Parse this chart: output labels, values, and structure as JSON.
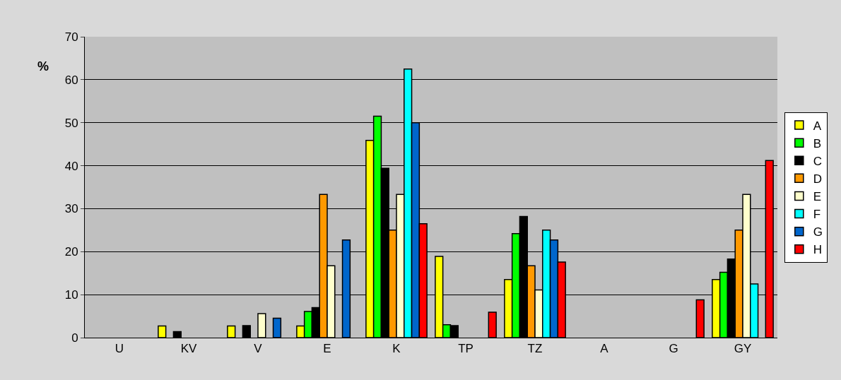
{
  "chart_data": {
    "type": "bar",
    "ylabel": "%",
    "categories": [
      "U",
      "KV",
      "V",
      "E",
      "K",
      "TP",
      "TZ",
      "A",
      "G",
      "GY"
    ],
    "series": [
      {
        "name": "A",
        "color": "#ffff00",
        "values": [
          null,
          2.7,
          2.7,
          2.7,
          45.9,
          18.9,
          13.5,
          null,
          null,
          13.5
        ]
      },
      {
        "name": "B",
        "color": "#00ff00",
        "values": [
          null,
          null,
          null,
          6.1,
          51.5,
          3.0,
          24.2,
          null,
          null,
          15.2
        ]
      },
      {
        "name": "C",
        "color": "#000000",
        "values": [
          null,
          1.4,
          2.8,
          7.0,
          39.4,
          2.8,
          28.2,
          null,
          null,
          18.3
        ]
      },
      {
        "name": "D",
        "color": "#ff9900",
        "values": [
          null,
          null,
          null,
          33.3,
          25.0,
          null,
          16.7,
          null,
          null,
          25.0
        ]
      },
      {
        "name": "E",
        "color": "#ffffcc",
        "values": [
          null,
          null,
          5.6,
          16.7,
          33.3,
          null,
          11.1,
          null,
          null,
          33.3
        ]
      },
      {
        "name": "F",
        "color": "#00ffff",
        "values": [
          null,
          null,
          null,
          null,
          62.5,
          null,
          25.0,
          null,
          null,
          12.5
        ]
      },
      {
        "name": "G",
        "color": "#0066cc",
        "values": [
          null,
          null,
          4.5,
          22.7,
          50.0,
          null,
          22.7,
          null,
          null,
          null
        ]
      },
      {
        "name": "H",
        "color": "#ff0000",
        "values": [
          null,
          null,
          null,
          null,
          26.5,
          5.9,
          17.6,
          null,
          8.8,
          41.2
        ]
      }
    ],
    "ylim": [
      0,
      70
    ],
    "yticks": [
      0,
      10,
      20,
      30,
      40,
      50,
      60,
      70
    ],
    "grid": "y",
    "legend": "right"
  }
}
